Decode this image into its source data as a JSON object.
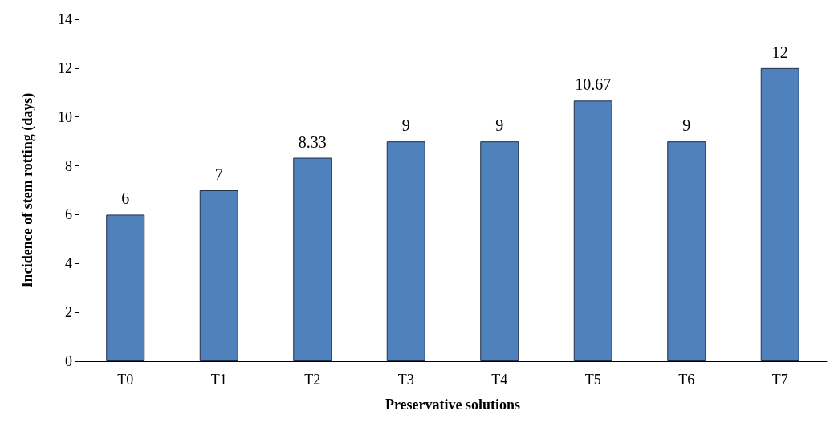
{
  "chart_data": {
    "type": "bar",
    "xlabel": "Preservative solutions",
    "ylabel": "Incidence of stem rotting (days)",
    "categories": [
      "T0",
      "T1",
      "T2",
      "T3",
      "T4",
      "T5",
      "T6",
      "T7"
    ],
    "values": [
      6,
      7,
      8.33,
      9,
      9,
      10.67,
      9,
      12
    ],
    "color": "#4f81bd",
    "ylim": [
      0,
      14
    ],
    "yticks": [
      0,
      2,
      4,
      6,
      8,
      10,
      12,
      14
    ],
    "grid": false,
    "data_labels": true
  }
}
